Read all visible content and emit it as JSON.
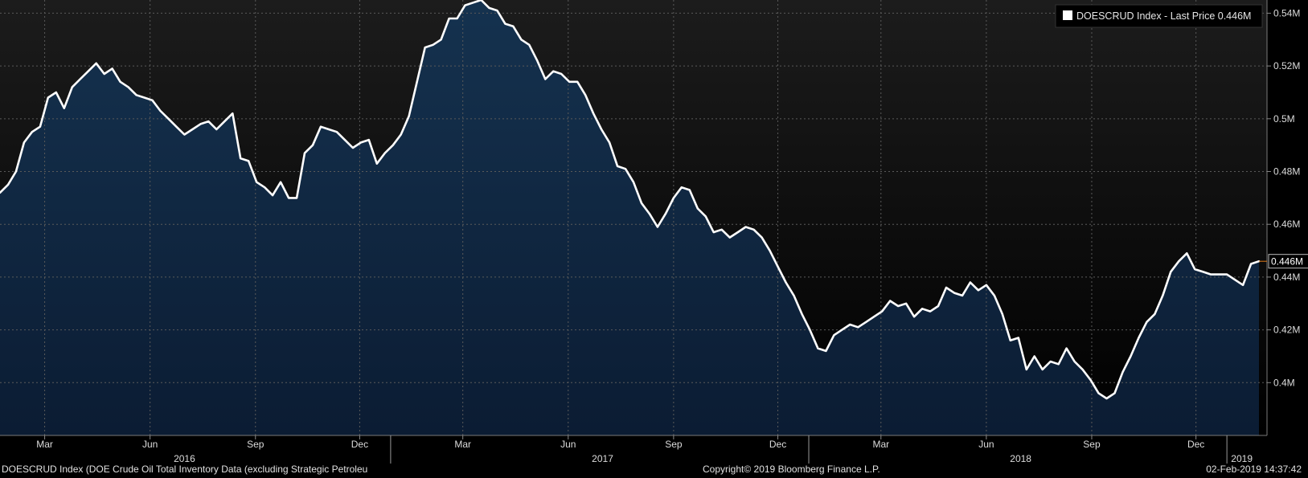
{
  "chart_data": {
    "type": "area",
    "security": "DOESCRUD Index",
    "legend": {
      "label": "DOESCRUD Index - Last Price 0.446M",
      "position": "top-right"
    },
    "last_value": 0.446,
    "last_value_label": "0.446M",
    "y_unit": "M",
    "ylim": [
      0.38,
      0.545
    ],
    "yticks": [
      {
        "v": 0.4,
        "label": "0.4M"
      },
      {
        "v": 0.42,
        "label": "0.42M"
      },
      {
        "v": 0.44,
        "label": "0.44M"
      },
      {
        "v": 0.46,
        "label": "0.46M"
      },
      {
        "v": 0.48,
        "label": "0.48M"
      },
      {
        "v": 0.5,
        "label": "0.5M"
      },
      {
        "v": 0.52,
        "label": "0.52M"
      },
      {
        "v": 0.54,
        "label": "0.54M"
      }
    ],
    "xlim": [
      "2016-01-22",
      "2019-02-01"
    ],
    "month_ticks": [
      {
        "d": "2016-03-01",
        "label": "Mar"
      },
      {
        "d": "2016-06-01",
        "label": "Jun"
      },
      {
        "d": "2016-09-01",
        "label": "Sep"
      },
      {
        "d": "2016-12-01",
        "label": "Dec"
      },
      {
        "d": "2017-03-01",
        "label": "Mar"
      },
      {
        "d": "2017-06-01",
        "label": "Jun"
      },
      {
        "d": "2017-09-01",
        "label": "Sep"
      },
      {
        "d": "2017-12-01",
        "label": "Dec"
      },
      {
        "d": "2018-03-01",
        "label": "Mar"
      },
      {
        "d": "2018-06-01",
        "label": "Jun"
      },
      {
        "d": "2018-09-01",
        "label": "Sep"
      },
      {
        "d": "2018-12-01",
        "label": "Dec"
      }
    ],
    "year_ticks": [
      {
        "d": "2016-07-01",
        "label": "2016"
      },
      {
        "d": "2017-07-01",
        "label": "2017"
      },
      {
        "d": "2018-07-01",
        "label": "2018"
      },
      {
        "d": "2019-01-10",
        "label": "2019"
      }
    ],
    "year_dividers": [
      "2016-12-28",
      "2017-12-28",
      "2018-12-28"
    ],
    "grid": true,
    "colors": {
      "line": "#ffffff",
      "fill_top": "#15324f",
      "fill_bottom": "#0b1c33",
      "last_marker": "#e07b1a",
      "grid": "#5a5a5a"
    },
    "series": [
      {
        "x": [
          "2016-01-22",
          "2016-01-29",
          "2016-02-05",
          "2016-02-12",
          "2016-02-19",
          "2016-02-26",
          "2016-03-04",
          "2016-03-11",
          "2016-03-18",
          "2016-03-25",
          "2016-04-01",
          "2016-04-08",
          "2016-04-15",
          "2016-04-22",
          "2016-04-29",
          "2016-05-06",
          "2016-05-13",
          "2016-05-20",
          "2016-05-27",
          "2016-06-03",
          "2016-06-10",
          "2016-06-17",
          "2016-06-24",
          "2016-07-01",
          "2016-07-08",
          "2016-07-15",
          "2016-07-22",
          "2016-07-29",
          "2016-08-05",
          "2016-08-12",
          "2016-08-19",
          "2016-08-26",
          "2016-09-02",
          "2016-09-09",
          "2016-09-16",
          "2016-09-23",
          "2016-09-30",
          "2016-10-07",
          "2016-10-14",
          "2016-10-21",
          "2016-10-28",
          "2016-11-04",
          "2016-11-11",
          "2016-11-18",
          "2016-11-25",
          "2016-12-02",
          "2016-12-09",
          "2016-12-16",
          "2016-12-23",
          "2016-12-30",
          "2017-01-06",
          "2017-01-13",
          "2017-01-20",
          "2017-01-27",
          "2017-02-03",
          "2017-02-10",
          "2017-02-17",
          "2017-02-24",
          "2017-03-03",
          "2017-03-10",
          "2017-03-17",
          "2017-03-24",
          "2017-03-31",
          "2017-04-07",
          "2017-04-14",
          "2017-04-21",
          "2017-04-28",
          "2017-05-05",
          "2017-05-12",
          "2017-05-19",
          "2017-05-26",
          "2017-06-02",
          "2017-06-09",
          "2017-06-16",
          "2017-06-23",
          "2017-06-30",
          "2017-07-07",
          "2017-07-14",
          "2017-07-21",
          "2017-07-28",
          "2017-08-04",
          "2017-08-11",
          "2017-08-18",
          "2017-08-25",
          "2017-09-01",
          "2017-09-08",
          "2017-09-15",
          "2017-09-22",
          "2017-09-29",
          "2017-10-06",
          "2017-10-13",
          "2017-10-20",
          "2017-10-27",
          "2017-11-03",
          "2017-11-10",
          "2017-11-17",
          "2017-11-24",
          "2017-12-01",
          "2017-12-08",
          "2017-12-15",
          "2017-12-22",
          "2017-12-29",
          "2018-01-05",
          "2018-01-12",
          "2018-01-19",
          "2018-01-26",
          "2018-02-02",
          "2018-02-09",
          "2018-02-16",
          "2018-02-23",
          "2018-03-02",
          "2018-03-09",
          "2018-03-16",
          "2018-03-23",
          "2018-03-30",
          "2018-04-06",
          "2018-04-13",
          "2018-04-20",
          "2018-04-27",
          "2018-05-04",
          "2018-05-11",
          "2018-05-18",
          "2018-05-25",
          "2018-06-01",
          "2018-06-08",
          "2018-06-15",
          "2018-06-22",
          "2018-06-29",
          "2018-07-06",
          "2018-07-13",
          "2018-07-20",
          "2018-07-27",
          "2018-08-03",
          "2018-08-10",
          "2018-08-17",
          "2018-08-24",
          "2018-08-31",
          "2018-09-07",
          "2018-09-14",
          "2018-09-21",
          "2018-09-28",
          "2018-10-05",
          "2018-10-12",
          "2018-10-19",
          "2018-10-26",
          "2018-11-02",
          "2018-11-09",
          "2018-11-16",
          "2018-11-23",
          "2018-11-30",
          "2018-12-07",
          "2018-12-14",
          "2018-12-21",
          "2018-12-28",
          "2019-01-04",
          "2019-01-11",
          "2019-01-18",
          "2019-01-25"
        ],
        "y": [
          0.472,
          0.475,
          0.48,
          0.491,
          0.495,
          0.497,
          0.508,
          0.51,
          0.504,
          0.512,
          0.515,
          0.518,
          0.521,
          0.517,
          0.519,
          0.514,
          0.512,
          0.509,
          0.508,
          0.507,
          0.503,
          0.5,
          0.497,
          0.494,
          0.496,
          0.498,
          0.499,
          0.496,
          0.499,
          0.502,
          0.485,
          0.484,
          0.476,
          0.474,
          0.471,
          0.476,
          0.47,
          0.47,
          0.487,
          0.49,
          0.497,
          0.496,
          0.495,
          0.492,
          0.489,
          0.491,
          0.492,
          0.483,
          0.487,
          0.49,
          0.494,
          0.501,
          0.514,
          0.527,
          0.528,
          0.53,
          0.538,
          0.538,
          0.543,
          0.544,
          0.545,
          0.542,
          0.541,
          0.536,
          0.535,
          0.53,
          0.528,
          0.522,
          0.515,
          0.518,
          0.517,
          0.514,
          0.514,
          0.509,
          0.502,
          0.496,
          0.491,
          0.482,
          0.481,
          0.476,
          0.468,
          0.464,
          0.459,
          0.464,
          0.47,
          0.474,
          0.473,
          0.466,
          0.463,
          0.457,
          0.458,
          0.455,
          0.457,
          0.459,
          0.458,
          0.455,
          0.45,
          0.444,
          0.438,
          0.433,
          0.426,
          0.42,
          0.413,
          0.412,
          0.418,
          0.42,
          0.422,
          0.421,
          0.423,
          0.425,
          0.427,
          0.431,
          0.429,
          0.43,
          0.425,
          0.428,
          0.427,
          0.429,
          0.436,
          0.434,
          0.433,
          0.438,
          0.435,
          0.437,
          0.433,
          0.426,
          0.416,
          0.417,
          0.405,
          0.41,
          0.405,
          0.408,
          0.407,
          0.413,
          0.408,
          0.405,
          0.401,
          0.396,
          0.394,
          0.396,
          0.404,
          0.41,
          0.417,
          0.423,
          0.426,
          0.433,
          0.442,
          0.446,
          0.449,
          0.443,
          0.442,
          0.441,
          0.441,
          0.441,
          0.439,
          0.437,
          0.445,
          0.446
        ]
      }
    ]
  },
  "footer": {
    "left": "DOESCRUD Index (DOE Crude Oil Total Inventory Data (excluding Strategic Petroleu",
    "center": "Copyright© 2019 Bloomberg Finance L.P.",
    "right": "02-Feb-2019 14:37:42"
  }
}
